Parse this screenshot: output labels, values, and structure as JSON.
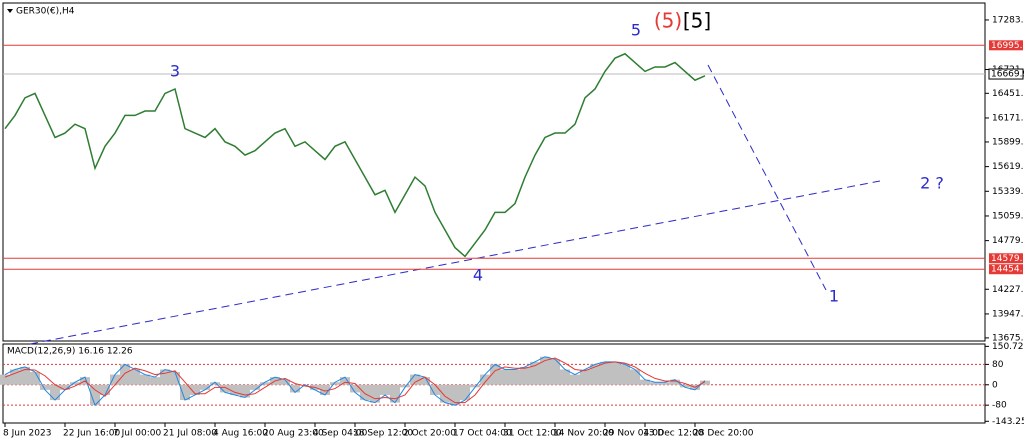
{
  "chart_data": {
    "type": "line",
    "title": "GER30(€),H4",
    "categories": [
      "8 Jun 2023",
      null,
      null,
      null,
      null,
      null,
      "22 Jun 16:00",
      null,
      null,
      null,
      null,
      "7 Jul 00:00",
      null,
      null,
      null,
      null,
      "21 Jul 08:00",
      null,
      null,
      null,
      null,
      "4 Aug 16:00",
      null,
      null,
      null,
      null,
      "20 Aug 23:00",
      null,
      null,
      null,
      null,
      "4 Sep 04:00",
      null,
      null,
      null,
      "18 Sep 12:00",
      null,
      null,
      null,
      null,
      "2 Oct 20:00",
      null,
      null,
      null,
      null,
      "17 Oct 04:00",
      null,
      null,
      null,
      null,
      "31 Oct 12:00",
      null,
      null,
      null,
      null,
      "14 Nov 20:00",
      null,
      null,
      null,
      null,
      "29 Nov 04:00",
      null,
      null,
      null,
      "13 Dec 12:00",
      null,
      null,
      null,
      null,
      "28 Dec 20:00",
      null
    ],
    "series": [
      {
        "name": "GER30",
        "color": "#2e7d32",
        "values": [
          16050,
          16200,
          16400,
          16450,
          16200,
          15950,
          16000,
          16100,
          16050,
          15600,
          15850,
          16000,
          16200,
          16200,
          16250,
          16250,
          16450,
          16500,
          16050,
          16000,
          15950,
          16050,
          15900,
          15850,
          15750,
          15800,
          15900,
          16000,
          16050,
          15850,
          15900,
          15800,
          15700,
          15850,
          15900,
          15700,
          15500,
          15300,
          15350,
          15100,
          15300,
          15500,
          15400,
          15100,
          14900,
          14700,
          14600,
          14750,
          14900,
          15100,
          15100,
          15200,
          15500,
          15750,
          15950,
          16000,
          16000,
          16100,
          16400,
          16500,
          16700,
          16850,
          16900,
          16800,
          16700,
          16750,
          16750,
          16800,
          16700,
          16600,
          16650
        ]
      }
    ],
    "ylim": [
      13640,
      17476
    ],
    "yticks": [
      17283.5,
      16721.1,
      16451.1,
      16171.1,
      15899.1,
      15619.1,
      15339.1,
      15059.1,
      14779.1,
      14227.1,
      13947.1,
      13675.1
    ],
    "levels": [
      16995.9,
      14579.1,
      14454.7
    ],
    "level_color": "#e53935",
    "current_price": 16669.9,
    "annotations": [
      "3",
      "4",
      "5",
      "(5)",
      "[5]",
      "2 ?",
      "1"
    ],
    "macd": {
      "title": "MACD(12,26,9) 16.16 12.26",
      "ylim": [
        -150,
        160
      ],
      "yticks": [
        150.72,
        80,
        0,
        -80,
        -143.25
      ],
      "levels": [
        80,
        0,
        -80
      ],
      "values": [
        40,
        60,
        70,
        50,
        -20,
        -60,
        -20,
        10,
        30,
        -80,
        -40,
        40,
        80,
        60,
        40,
        30,
        60,
        50,
        -60,
        -40,
        -20,
        10,
        -30,
        -40,
        -50,
        -20,
        10,
        30,
        20,
        -30,
        0,
        -20,
        -40,
        10,
        30,
        -30,
        -60,
        -70,
        -40,
        -70,
        -10,
        40,
        30,
        -40,
        -70,
        -80,
        -60,
        -10,
        40,
        80,
        60,
        60,
        70,
        90,
        110,
        100,
        60,
        40,
        60,
        80,
        90,
        90,
        80,
        60,
        20,
        10,
        10,
        20,
        -10,
        -20,
        16.16
      ],
      "signal": [
        30,
        45,
        60,
        58,
        35,
        0,
        -20,
        -5,
        15,
        -20,
        -45,
        0,
        45,
        65,
        55,
        40,
        45,
        55,
        10,
        -35,
        -35,
        -10,
        -10,
        -30,
        -40,
        -35,
        -10,
        15,
        25,
        5,
        -5,
        -10,
        -25,
        -15,
        10,
        5,
        -35,
        -55,
        -50,
        -55,
        -40,
        10,
        30,
        0,
        -45,
        -70,
        -70,
        -40,
        10,
        55,
        70,
        65,
        65,
        75,
        95,
        105,
        85,
        60,
        55,
        70,
        85,
        90,
        85,
        70,
        45,
        25,
        15,
        15,
        5,
        -10,
        12.26
      ],
      "hist_color": "#c0c0c0",
      "signal_color": "#e53935",
      "macd_line_color": "#1e88e5"
    }
  }
}
